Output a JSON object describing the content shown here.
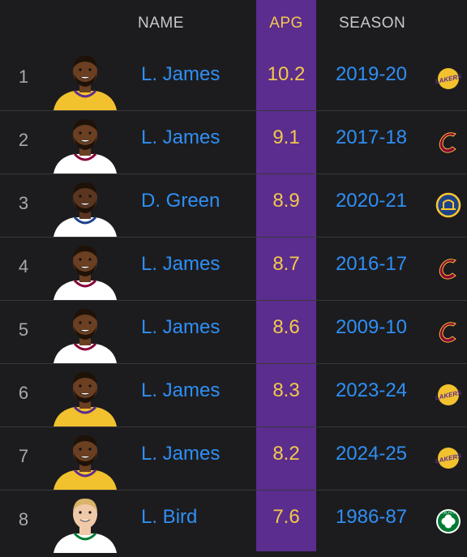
{
  "header": {
    "name_label": "NAME",
    "apg_label": "APG",
    "season_label": "SEASON"
  },
  "rows": [
    {
      "rank": "1",
      "name": "L. James",
      "apg": "10.2",
      "season": "2019-20",
      "team": "lakers",
      "jersey": "#f2c12e",
      "skin": "#6b3f22",
      "hair": "#1e1208"
    },
    {
      "rank": "2",
      "name": "L. James",
      "apg": "9.1",
      "season": "2017-18",
      "team": "cavaliers",
      "jersey": "#ffffff",
      "skin": "#6b3f22",
      "hair": "#1e1208"
    },
    {
      "rank": "3",
      "name": "D. Green",
      "apg": "8.9",
      "season": "2020-21",
      "team": "warriors",
      "jersey": "#ffffff",
      "skin": "#5a3520",
      "hair": "#1e1208"
    },
    {
      "rank": "4",
      "name": "L. James",
      "apg": "8.7",
      "season": "2016-17",
      "team": "cavaliers",
      "jersey": "#ffffff",
      "skin": "#6b3f22",
      "hair": "#1e1208"
    },
    {
      "rank": "5",
      "name": "L. James",
      "apg": "8.6",
      "season": "2009-10",
      "team": "cavaliers",
      "jersey": "#ffffff",
      "skin": "#6b3f22",
      "hair": "#1e1208"
    },
    {
      "rank": "6",
      "name": "L. James",
      "apg": "8.3",
      "season": "2023-24",
      "team": "lakers",
      "jersey": "#f2c12e",
      "skin": "#6b3f22",
      "hair": "#1e1208"
    },
    {
      "rank": "7",
      "name": "L. James",
      "apg": "8.2",
      "season": "2024-25",
      "team": "lakers",
      "jersey": "#f2c12e",
      "skin": "#6b3f22",
      "hair": "#1e1208"
    },
    {
      "rank": "8",
      "name": "L. Bird",
      "apg": "7.6",
      "season": "1986-87",
      "team": "celtics",
      "jersey": "#ffffff",
      "skin": "#f0c9a8",
      "hair": "#d9b46a"
    }
  ],
  "logo_labels": {
    "lakers": "LAKERS",
    "celtics": "CELTICS"
  },
  "colors": {
    "background": "#1c1c1e",
    "apg_column": "#5b2d8e",
    "link_blue": "#2f8ff5",
    "apg_gold": "#f2c94c"
  }
}
